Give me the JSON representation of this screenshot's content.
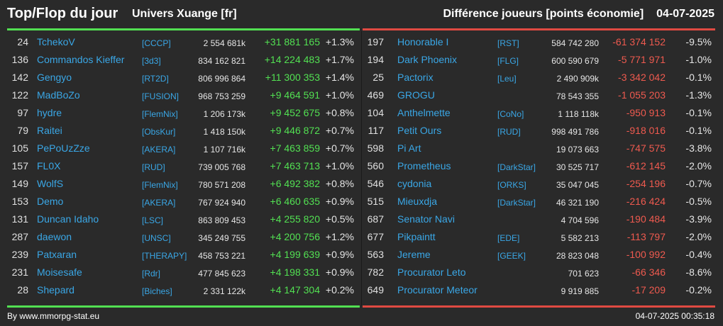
{
  "header": {
    "title": "Top/Flop du jour",
    "universe": "Univers Xuange [fr]",
    "subtitle": "Différence joueurs [points économie]",
    "date": "04-07-2025"
  },
  "colors": {
    "gain": "#52e052",
    "loss": "#ef5a4f",
    "link": "#3aa7e6",
    "background": "#2a2a2a"
  },
  "top": [
    {
      "rank": "24",
      "name": "TchekoV",
      "alliance": "[CCCP]",
      "points": "2 554 681k",
      "diff": "+31 881 165",
      "pct": "+1.3%"
    },
    {
      "rank": "136",
      "name": "Commandos Kieffer",
      "alliance": "[3d3]",
      "points": "834 162 821",
      "diff": "+14 224 483",
      "pct": "+1.7%"
    },
    {
      "rank": "142",
      "name": "Gengyo",
      "alliance": "[RT2D]",
      "points": "806 996 864",
      "diff": "+11 300 353",
      "pct": "+1.4%"
    },
    {
      "rank": "122",
      "name": "MadBoZo",
      "alliance": "[FUSION]",
      "points": "968 753 259",
      "diff": "+9 464 591",
      "pct": "+1.0%"
    },
    {
      "rank": "97",
      "name": "hydre",
      "alliance": "[FlemNix]",
      "points": "1 206 173k",
      "diff": "+9 452 675",
      "pct": "+0.8%"
    },
    {
      "rank": "79",
      "name": "Raitei",
      "alliance": "[ObsKur]",
      "points": "1 418 150k",
      "diff": "+9 446 872",
      "pct": "+0.7%"
    },
    {
      "rank": "105",
      "name": "PePoUzZze",
      "alliance": "[AKERA]",
      "points": "1 107 716k",
      "diff": "+7 463 859",
      "pct": "+0.7%"
    },
    {
      "rank": "157",
      "name": "FL0X",
      "alliance": "[RUD]",
      "points": "739 005 768",
      "diff": "+7 463 713",
      "pct": "+1.0%"
    },
    {
      "rank": "149",
      "name": "WolfS",
      "alliance": "[FlemNix]",
      "points": "780 571 208",
      "diff": "+6 492 382",
      "pct": "+0.8%"
    },
    {
      "rank": "153",
      "name": "Demo",
      "alliance": "[AKERA]",
      "points": "767 924 940",
      "diff": "+6 460 635",
      "pct": "+0.9%"
    },
    {
      "rank": "131",
      "name": "Duncan Idaho",
      "alliance": "[LSC]",
      "points": "863 809 453",
      "diff": "+4 255 820",
      "pct": "+0.5%"
    },
    {
      "rank": "287",
      "name": "daewon",
      "alliance": "[UNSC]",
      "points": "345 249 755",
      "diff": "+4 200 756",
      "pct": "+1.2%"
    },
    {
      "rank": "239",
      "name": "Patxaran",
      "alliance": "[THERAPY]",
      "points": "458 753 221",
      "diff": "+4 199 639",
      "pct": "+0.9%"
    },
    {
      "rank": "231",
      "name": "Moisesafe",
      "alliance": "[Rdr]",
      "points": "477 845 623",
      "diff": "+4 198 331",
      "pct": "+0.9%"
    },
    {
      "rank": "28",
      "name": "Shepard",
      "alliance": "[Biches]",
      "points": "2 331 122k",
      "diff": "+4 147 304",
      "pct": "+0.2%"
    }
  ],
  "flop": [
    {
      "rank": "197",
      "name": "Honorable I",
      "alliance": "[RST]",
      "points": "584 742 280",
      "diff": "-61 374 152",
      "pct": "-9.5%"
    },
    {
      "rank": "194",
      "name": "Dark Phoenix",
      "alliance": "[FLG]",
      "points": "600 590 679",
      "diff": "-5 771 971",
      "pct": "-1.0%"
    },
    {
      "rank": "25",
      "name": "Pactorix",
      "alliance": "[Leu]",
      "points": "2 490 909k",
      "diff": "-3 342 042",
      "pct": "-0.1%"
    },
    {
      "rank": "469",
      "name": "GROGU",
      "alliance": "",
      "points": "78 543 355",
      "diff": "-1 055 203",
      "pct": "-1.3%"
    },
    {
      "rank": "104",
      "name": "Anthelmette",
      "alliance": "[CoNo]",
      "points": "1 118 118k",
      "diff": "-950 913",
      "pct": "-0.1%"
    },
    {
      "rank": "117",
      "name": "Petit Ours",
      "alliance": "[RUD]",
      "points": "998 491 786",
      "diff": "-918 016",
      "pct": "-0.1%"
    },
    {
      "rank": "598",
      "name": "Pi Art",
      "alliance": "",
      "points": "19 073 663",
      "diff": "-747 575",
      "pct": "-3.8%"
    },
    {
      "rank": "560",
      "name": "Prometheus",
      "alliance": "[DarkStar]",
      "points": "30 525 717",
      "diff": "-612 145",
      "pct": "-2.0%"
    },
    {
      "rank": "546",
      "name": "cydonia",
      "alliance": "[ORKS]",
      "points": "35 047 045",
      "diff": "-254 196",
      "pct": "-0.7%"
    },
    {
      "rank": "515",
      "name": "Mieuxdja",
      "alliance": "[DarkStar]",
      "points": "46 321 190",
      "diff": "-216 424",
      "pct": "-0.5%"
    },
    {
      "rank": "687",
      "name": "Senator Navi",
      "alliance": "",
      "points": "4 704 596",
      "diff": "-190 484",
      "pct": "-3.9%"
    },
    {
      "rank": "677",
      "name": "Pikpaintt",
      "alliance": "[EDE]",
      "points": "5 582 213",
      "diff": "-113 797",
      "pct": "-2.0%"
    },
    {
      "rank": "563",
      "name": "Jereme",
      "alliance": "[GEEK]",
      "points": "28 823 048",
      "diff": "-100 992",
      "pct": "-0.4%"
    },
    {
      "rank": "782",
      "name": "Procurator Leto",
      "alliance": "",
      "points": "701 623",
      "diff": "-66 346",
      "pct": "-8.6%"
    },
    {
      "rank": "649",
      "name": "Procurator Meteor",
      "alliance": "",
      "points": "9 919 885",
      "diff": "-17 209",
      "pct": "-0.2%"
    }
  ],
  "footer": {
    "credit": "By www.mmorpg-stat.eu",
    "timestamp": "04-07-2025 00:35:18"
  }
}
